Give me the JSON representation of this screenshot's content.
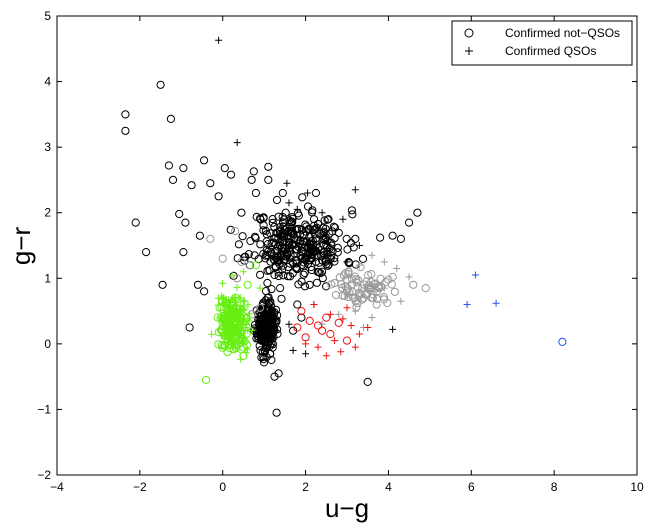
{
  "chart_data": {
    "type": "scatter",
    "title": "",
    "xlabel": "u−g",
    "ylabel": "g−r",
    "xlim": [
      -4,
      10
    ],
    "ylim": [
      -2,
      5
    ],
    "xticks": [
      -4,
      -2,
      0,
      2,
      4,
      6,
      8,
      10
    ],
    "yticks": [
      -2,
      -1,
      0,
      1,
      2,
      3,
      4,
      5
    ],
    "xtick_labels": [
      "−4",
      "−2",
      "0",
      "2",
      "4",
      "6",
      "8",
      "10"
    ],
    "ytick_labels": [
      "−2",
      "−1",
      "0",
      "1",
      "2",
      "3",
      "4",
      "5"
    ],
    "grid": false,
    "legend_position": "top-right",
    "legend": [
      {
        "label": "Confirmed not−QSOs",
        "marker": "circle"
      },
      {
        "label": "Confirmed QSOs",
        "marker": "plus"
      }
    ],
    "colors": {
      "black": "#000000",
      "gray": "#999999",
      "green": "#66ee11",
      "red": "#ee1111",
      "blue": "#2255ee"
    },
    "series": [
      {
        "color": "black",
        "marker": "circle",
        "points": [
          [
            -2.35,
            3.5
          ],
          [
            -2.35,
            3.25
          ],
          [
            -1.5,
            3.95
          ],
          [
            -1.25,
            3.43
          ],
          [
            -1.3,
            2.72
          ],
          [
            -1.2,
            2.5
          ],
          [
            -0.95,
            2.68
          ],
          [
            -0.75,
            2.42
          ],
          [
            -0.45,
            2.8
          ],
          [
            -0.3,
            2.45
          ],
          [
            0.05,
            2.68
          ],
          [
            0.2,
            2.58
          ],
          [
            0.75,
            2.63
          ],
          [
            1.1,
            2.7
          ],
          [
            0.45,
            2.0
          ],
          [
            0.7,
            2.5
          ],
          [
            -0.1,
            2.25
          ],
          [
            0.8,
            2.3
          ],
          [
            1.1,
            2.5
          ],
          [
            1.45,
            2.3
          ],
          [
            2.25,
            2.3
          ],
          [
            -2.1,
            1.85
          ],
          [
            -1.85,
            1.4
          ],
          [
            -1.05,
            1.98
          ],
          [
            -0.9,
            1.85
          ],
          [
            -0.95,
            1.4
          ],
          [
            -1.45,
            0.9
          ],
          [
            -0.55,
            1.65
          ],
          [
            -0.6,
            0.9
          ],
          [
            -0.45,
            0.8
          ],
          [
            -0.8,
            0.25
          ],
          [
            1.25,
            -0.5
          ],
          [
            1.35,
            -0.45
          ],
          [
            1.3,
            -1.05
          ],
          [
            3.5,
            -0.58
          ],
          [
            4.7,
            2.0
          ],
          [
            4.5,
            1.85
          ],
          [
            4.3,
            1.6
          ],
          [
            4.1,
            1.65
          ],
          [
            3.8,
            1.62
          ],
          [
            3.2,
            1.6
          ],
          [
            2.6,
            1.3
          ],
          [
            2.4,
            1.1
          ],
          [
            2.1,
            0.9
          ],
          [
            1.8,
            0.6
          ],
          [
            1.9,
            0.4
          ],
          [
            1.7,
            0.2
          ]
        ],
        "cluster": {
          "center": [
            1.8,
            1.5
          ],
          "spread": [
            0.95,
            0.45
          ],
          "count": 320,
          "seed": 11
        }
      },
      {
        "color": "black",
        "marker": "circle",
        "cluster": {
          "center": [
            1.05,
            0.25
          ],
          "spread": [
            0.18,
            0.3
          ],
          "count": 280,
          "seed": 23
        }
      },
      {
        "color": "black",
        "marker": "plus",
        "points": [
          [
            -0.1,
            4.63
          ],
          [
            0.35,
            3.07
          ],
          [
            1.55,
            2.45
          ],
          [
            2.05,
            2.3
          ],
          [
            3.2,
            2.35
          ],
          [
            1.6,
            2.15
          ],
          [
            1.8,
            2.05
          ],
          [
            2.4,
            2.0
          ],
          [
            2.9,
            1.9
          ],
          [
            3.3,
            1.5
          ],
          [
            3.0,
            1.25
          ],
          [
            2.2,
            0.6
          ],
          [
            1.6,
            0.3
          ],
          [
            4.1,
            0.22
          ],
          [
            1.7,
            -0.1
          ],
          [
            2.0,
            -0.15
          ]
        ]
      },
      {
        "color": "gray",
        "marker": "circle",
        "points": [
          [
            4.9,
            0.85
          ],
          [
            4.6,
            0.9
          ],
          [
            3.5,
            0.85
          ],
          [
            3.3,
            0.78
          ],
          [
            4.0,
            0.98
          ],
          [
            -0.3,
            1.6
          ],
          [
            0.0,
            1.3
          ],
          [
            0.35,
            1.0
          ],
          [
            0.3,
            1.72
          ],
          [
            0.45,
            1.25
          ],
          [
            0.65,
            1.2
          ],
          [
            0.9,
            0.55
          ],
          [
            0.7,
            0.45
          ]
        ],
        "cluster": {
          "center": [
            3.4,
            0.85
          ],
          "spread": [
            0.55,
            0.22
          ],
          "count": 70,
          "seed": 37
        }
      },
      {
        "color": "gray",
        "marker": "plus",
        "points": [
          [
            3.3,
            1.2
          ],
          [
            3.6,
            1.35
          ],
          [
            3.9,
            1.25
          ],
          [
            4.2,
            1.15
          ],
          [
            4.5,
            1.02
          ],
          [
            3.0,
            0.75
          ],
          [
            3.2,
            0.5
          ],
          [
            3.6,
            0.4
          ],
          [
            3.9,
            0.85
          ],
          [
            4.3,
            0.65
          ],
          [
            2.4,
            0.3
          ],
          [
            2.8,
            0.45
          ],
          [
            3.4,
            0.25
          ]
        ]
      },
      {
        "color": "green",
        "marker": "circle",
        "points": [
          [
            0.8,
            1.2
          ],
          [
            0.6,
            0.9
          ],
          [
            -0.4,
            -0.55
          ]
        ],
        "cluster": {
          "center": [
            0.2,
            0.25
          ],
          "spread": [
            0.32,
            0.35
          ],
          "count": 110,
          "seed": 51
        }
      },
      {
        "color": "green",
        "marker": "plus",
        "points": [
          [
            0.5,
            1.1
          ],
          [
            0.9,
            0.85
          ],
          [
            0.4,
            0.7
          ]
        ],
        "cluster": {
          "center": [
            0.3,
            0.35
          ],
          "spread": [
            0.32,
            0.38
          ],
          "count": 150,
          "seed": 73
        }
      },
      {
        "color": "red",
        "marker": "circle",
        "points": [
          [
            1.9,
            0.5
          ],
          [
            2.1,
            0.35
          ],
          [
            2.0,
            0.1
          ],
          [
            2.3,
            0.28
          ],
          [
            2.5,
            0.4
          ],
          [
            2.6,
            0.15
          ],
          [
            2.8,
            0.32
          ],
          [
            3.0,
            0.05
          ],
          [
            1.8,
            0.25
          ],
          [
            2.4,
            0.2
          ]
        ]
      },
      {
        "color": "red",
        "marker": "plus",
        "points": [
          [
            2.2,
            0.6
          ],
          [
            2.6,
            0.45
          ],
          [
            2.9,
            0.38
          ],
          [
            3.1,
            0.28
          ],
          [
            3.3,
            0.15
          ],
          [
            3.2,
            -0.05
          ],
          [
            2.7,
            0.05
          ],
          [
            2.3,
            -0.05
          ],
          [
            2.0,
            0.0
          ],
          [
            3.5,
            0.25
          ],
          [
            2.5,
            -0.18
          ],
          [
            2.85,
            -0.12
          ],
          [
            3.0,
            0.55
          ]
        ]
      },
      {
        "color": "blue",
        "marker": "circle",
        "points": [
          [
            8.2,
            0.03
          ]
        ]
      },
      {
        "color": "blue",
        "marker": "plus",
        "points": [
          [
            6.1,
            1.05
          ],
          [
            5.9,
            0.6
          ],
          [
            6.6,
            0.62
          ]
        ]
      }
    ]
  }
}
